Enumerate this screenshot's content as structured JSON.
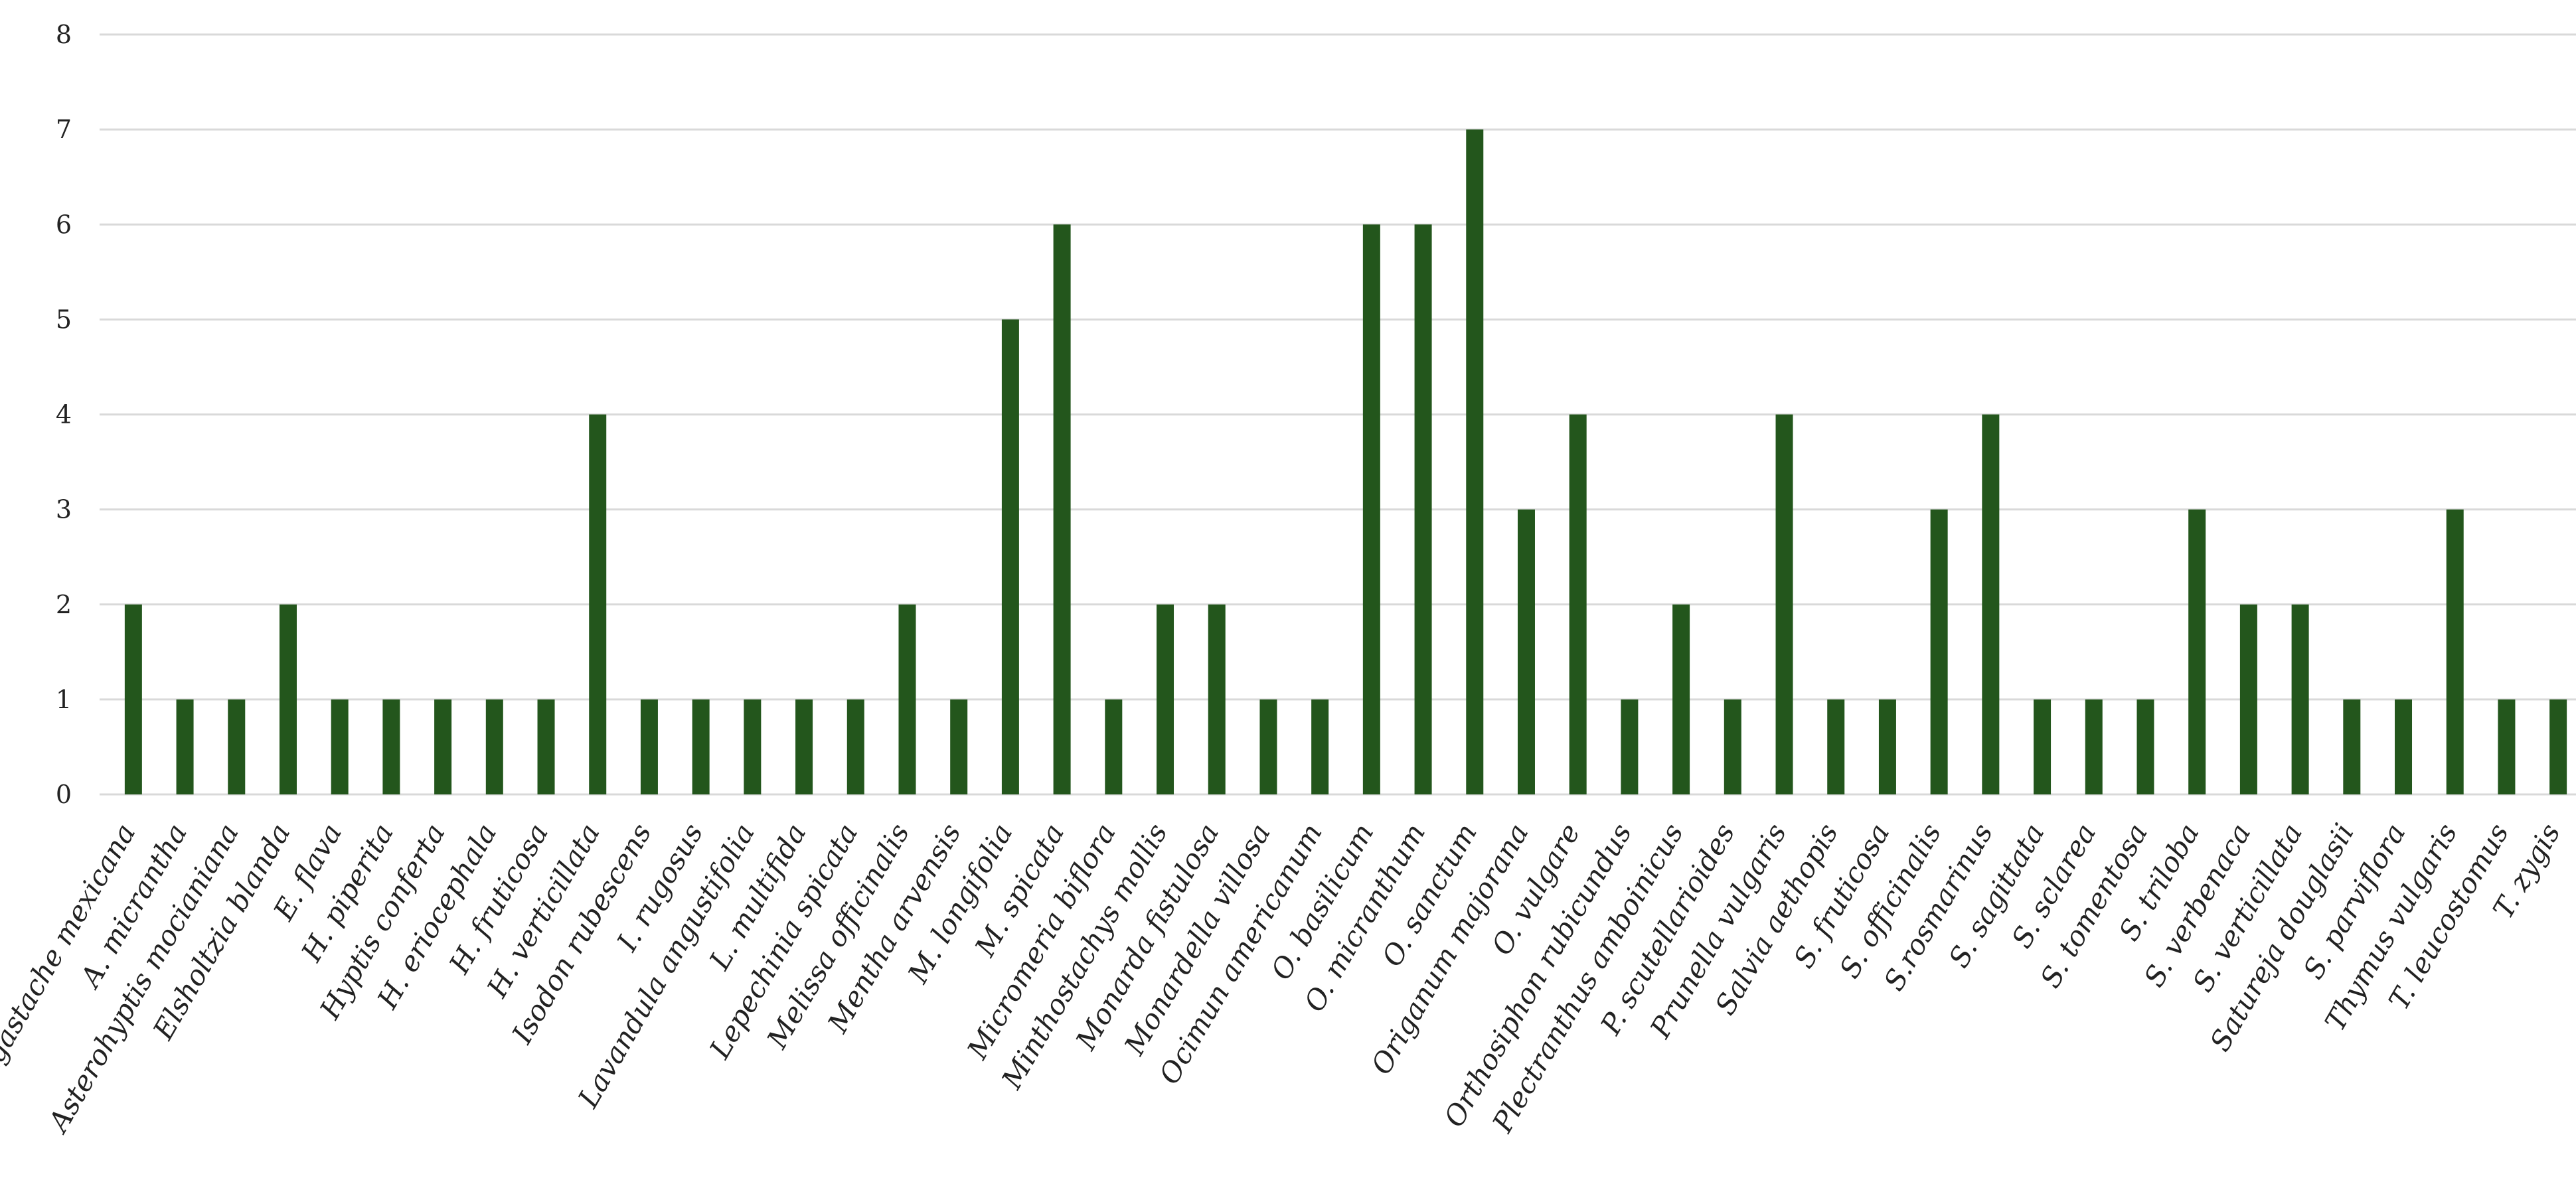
{
  "chart_data": {
    "type": "bar",
    "title": "",
    "xlabel": "",
    "ylabel": "",
    "ylim": [
      0,
      8
    ],
    "yticks": [
      0,
      1,
      2,
      3,
      4,
      5,
      6,
      7,
      8
    ],
    "grid": "horizontal",
    "legend": "none",
    "bar_color": "#23561c",
    "categories": [
      "Agastache mexicana",
      "A. micrantha",
      "Asterohyptis mocianiana",
      "Elsholtzia blanda",
      "E. flava",
      "H. piperita",
      "Hyptis conferta",
      "H. eriocephala",
      "H. fruticosa",
      "H. verticillata",
      "Isodon rubescens",
      "I. rugosus",
      "Lavandula angustifolia",
      "L. multifida",
      "Lepechinia spicata",
      "Melissa officinalis",
      "Mentha arvensis",
      "M. longifolia",
      "M. spicata",
      "Micromeria biflora",
      "Minthostachys mollis",
      "Monarda fistulosa",
      "Monardella villosa",
      "Ocimun americanum",
      "O. basilicum",
      "O. micranthum",
      "O. sanctum",
      "Origanum majorana",
      "O. vulgare",
      "Orthosiphon rubicundus",
      "Plectranthus amboinicus",
      "P. scutellarioides",
      "Prunella vulgaris",
      "Salvia aethopis",
      "S. fruticosa",
      "S. officinalis",
      "S.rosmarinus",
      "S. sagittata",
      "S. sclarea",
      "S. tomentosa",
      "S. triloba",
      "S. verbenaca",
      "S. verticillata",
      "Satureja douglasii",
      "S. parviflora",
      "Thymus  vulgaris",
      "T. leucostomus",
      "T.  zygis"
    ],
    "values": [
      2,
      1,
      1,
      2,
      1,
      1,
      1,
      1,
      1,
      4,
      1,
      1,
      1,
      1,
      1,
      2,
      1,
      5,
      6,
      1,
      2,
      2,
      1,
      1,
      6,
      6,
      7,
      3,
      4,
      1,
      2,
      1,
      4,
      1,
      1,
      3,
      4,
      1,
      1,
      1,
      3,
      2,
      2,
      1,
      1,
      3,
      1,
      1
    ]
  }
}
